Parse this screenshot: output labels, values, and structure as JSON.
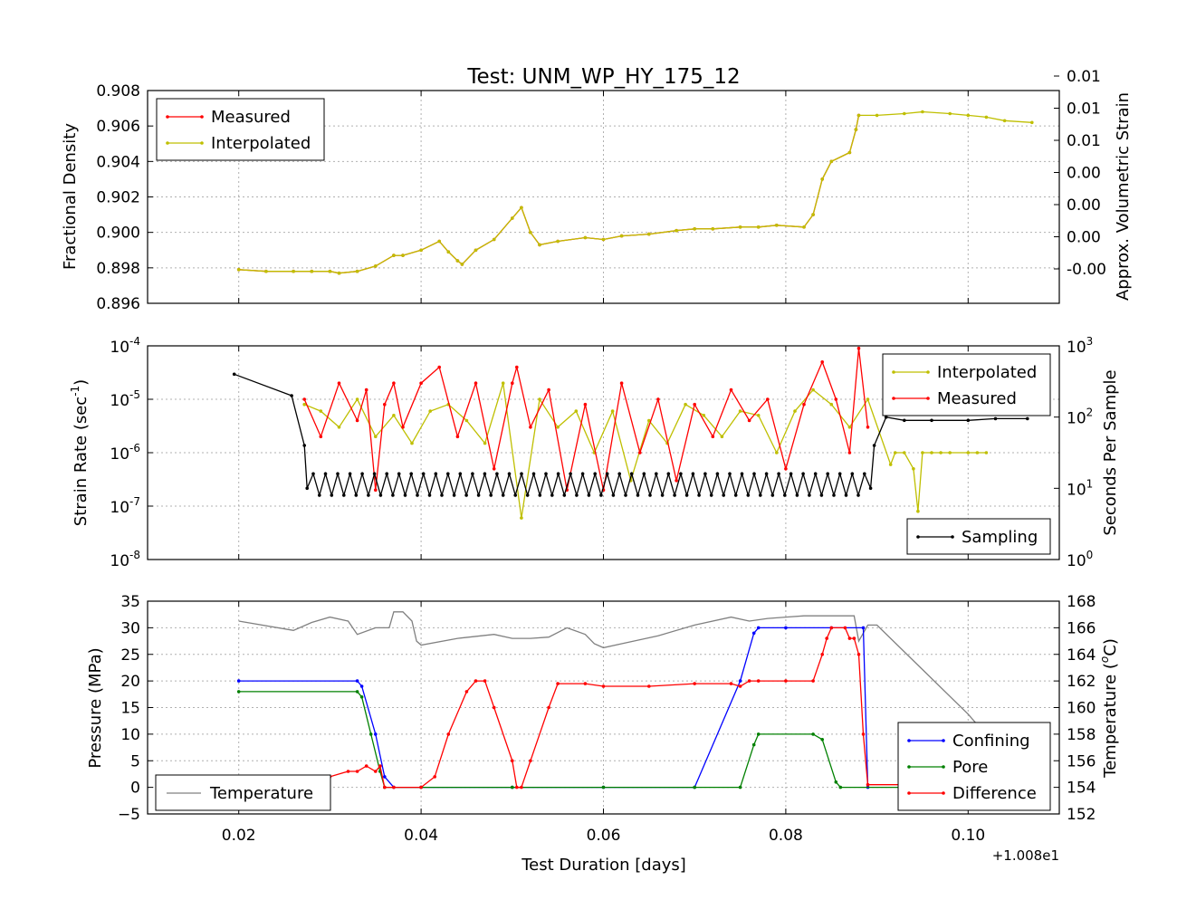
{
  "figure_title": "Test: UNM_WP_HY_175_12",
  "colors": {
    "measured": "#ff0000",
    "interpolated": "#bfbf00",
    "sampling": "#000000",
    "confining": "#0000ff",
    "pore": "#008000",
    "difference": "#ff0000",
    "temperature": "#808080"
  },
  "chart_data": [
    {
      "id": "density",
      "type": "line",
      "title": "Test: UNM_WP_HY_175_12",
      "ylabel": "Fractional Density",
      "y2label": "Approx. Volumetric Strain",
      "xlim": [
        0.01,
        0.11
      ],
      "ylim": [
        0.896,
        0.908
      ],
      "yticks": [
        "0.896",
        "0.898",
        "0.900",
        "0.902",
        "0.904",
        "0.906",
        "0.908"
      ],
      "y2ticks": [
        "-0.00",
        "0.00",
        "0.00",
        "0.00",
        "0.01",
        "0.01",
        "0.01"
      ],
      "grid": true,
      "legend": {
        "position": "upper-left",
        "entries": [
          "Measured",
          "Interpolated"
        ]
      },
      "series": [
        {
          "name": "Measured",
          "x": [
            0.02,
            0.023,
            0.026,
            0.028,
            0.03,
            0.031,
            0.033,
            0.035,
            0.037,
            0.038,
            0.04,
            0.042,
            0.043,
            0.044,
            0.0445,
            0.046,
            0.048,
            0.05,
            0.051,
            0.052,
            0.053,
            0.055,
            0.058,
            0.06,
            0.062,
            0.065,
            0.068,
            0.07,
            0.072,
            0.075,
            0.077,
            0.079,
            0.082,
            0.083,
            0.084,
            0.085,
            0.087,
            0.0877,
            0.088
          ],
          "y": [
            0.8979,
            0.8978,
            0.8978,
            0.8978,
            0.8978,
            0.8977,
            0.8978,
            0.8981,
            0.8987,
            0.8987,
            0.899,
            0.8995,
            0.8989,
            0.8984,
            0.8982,
            0.899,
            0.8996,
            0.9008,
            0.9014,
            0.9,
            0.8993,
            0.8995,
            0.8997,
            0.8996,
            0.8998,
            0.8999,
            0.9001,
            0.9002,
            0.9002,
            0.9003,
            0.9003,
            0.9004,
            0.9003,
            0.901,
            0.903,
            0.904,
            0.9045,
            0.9058,
            0.9066
          ]
        },
        {
          "name": "Interpolated",
          "x": [
            0.02,
            0.023,
            0.026,
            0.028,
            0.03,
            0.031,
            0.033,
            0.035,
            0.037,
            0.038,
            0.04,
            0.042,
            0.043,
            0.044,
            0.0445,
            0.046,
            0.048,
            0.05,
            0.051,
            0.052,
            0.053,
            0.055,
            0.058,
            0.06,
            0.062,
            0.065,
            0.068,
            0.07,
            0.072,
            0.075,
            0.077,
            0.079,
            0.082,
            0.083,
            0.084,
            0.085,
            0.087,
            0.0877,
            0.088,
            0.09,
            0.093,
            0.095,
            0.098,
            0.1,
            0.102,
            0.104,
            0.107
          ],
          "y": [
            0.8979,
            0.8978,
            0.8978,
            0.8978,
            0.8978,
            0.8977,
            0.8978,
            0.8981,
            0.8987,
            0.8987,
            0.899,
            0.8995,
            0.8989,
            0.8984,
            0.8982,
            0.899,
            0.8996,
            0.9008,
            0.9014,
            0.9,
            0.8993,
            0.8995,
            0.8997,
            0.8996,
            0.8998,
            0.8999,
            0.9001,
            0.9002,
            0.9002,
            0.9003,
            0.9003,
            0.9004,
            0.9003,
            0.901,
            0.903,
            0.904,
            0.9045,
            0.9058,
            0.9066,
            0.9066,
            0.9067,
            0.9068,
            0.9067,
            0.9066,
            0.9065,
            0.9063,
            0.9062
          ]
        }
      ]
    },
    {
      "id": "strainrate",
      "type": "line",
      "ylabel": "Strain Rate (sec",
      "ylabel_sup": "-1",
      "ylabel_tail": ")",
      "y2label": "Seconds Per Sample",
      "xlim": [
        0.01,
        0.11
      ],
      "ylog_range": [
        -8,
        -4
      ],
      "y2log_range": [
        0,
        3
      ],
      "yticks": [
        {
          "base": "10",
          "exp": "-8"
        },
        {
          "base": "10",
          "exp": "-7"
        },
        {
          "base": "10",
          "exp": "-6"
        },
        {
          "base": "10",
          "exp": "-5"
        },
        {
          "base": "10",
          "exp": "-4"
        }
      ],
      "y2ticks": [
        {
          "base": "10",
          "exp": "0"
        },
        {
          "base": "10",
          "exp": "1"
        },
        {
          "base": "10",
          "exp": "2"
        },
        {
          "base": "10",
          "exp": "3"
        }
      ],
      "grid": true,
      "legend_top": {
        "position": "upper-right",
        "entries": [
          "Interpolated",
          "Measured"
        ]
      },
      "legend_bottom": {
        "position": "lower-right",
        "entries": [
          "Sampling"
        ]
      },
      "series": [
        {
          "name": "Interpolated",
          "x": [
            0.0272,
            0.029,
            0.031,
            0.033,
            0.035,
            0.037,
            0.039,
            0.041,
            0.043,
            0.045,
            0.047,
            0.049,
            0.051,
            0.053,
            0.055,
            0.057,
            0.059,
            0.061,
            0.063,
            0.065,
            0.067,
            0.069,
            0.071,
            0.073,
            0.075,
            0.077,
            0.079,
            0.081,
            0.083,
            0.085,
            0.087,
            0.089,
            0.0915,
            0.092,
            0.093,
            0.094,
            0.0945,
            0.095,
            0.096,
            0.097,
            0.098,
            0.1,
            0.101,
            0.102
          ],
          "y": [
            8e-06,
            6e-06,
            3e-06,
            1e-05,
            2e-06,
            5e-06,
            1.5e-06,
            6e-06,
            8e-06,
            4e-06,
            1.5e-06,
            2e-05,
            6e-08,
            1e-05,
            3e-06,
            6e-06,
            1e-06,
            6e-06,
            3e-07,
            4e-06,
            1.5e-06,
            8e-06,
            5e-06,
            2e-06,
            6e-06,
            5e-06,
            1e-06,
            6e-06,
            1.5e-05,
            8e-06,
            3e-06,
            1e-05,
            6e-07,
            1e-06,
            1e-06,
            5e-07,
            8e-08,
            1e-06,
            1e-06,
            1e-06,
            1e-06,
            1e-06,
            1e-06,
            1e-06
          ]
        },
        {
          "name": "Measured",
          "x": [
            0.0272,
            0.029,
            0.031,
            0.033,
            0.034,
            0.035,
            0.036,
            0.037,
            0.038,
            0.04,
            0.042,
            0.044,
            0.046,
            0.048,
            0.05,
            0.0505,
            0.052,
            0.054,
            0.056,
            0.058,
            0.06,
            0.062,
            0.064,
            0.066,
            0.068,
            0.07,
            0.072,
            0.074,
            0.076,
            0.078,
            0.08,
            0.082,
            0.084,
            0.0855,
            0.087,
            0.088,
            0.089
          ],
          "y": [
            1e-05,
            2e-06,
            2e-05,
            4e-06,
            1.5e-05,
            2e-07,
            8e-06,
            2e-05,
            3e-06,
            2e-05,
            4e-05,
            2e-06,
            2e-05,
            5e-07,
            2e-05,
            4e-05,
            3e-06,
            1.5e-05,
            2e-07,
            8e-06,
            2e-07,
            2e-05,
            1e-06,
            1e-05,
            3e-07,
            8e-06,
            2e-06,
            1.5e-05,
            4e-06,
            1e-05,
            5e-07,
            8e-06,
            5e-05,
            1e-05,
            1e-06,
            9e-05,
            3e-06
          ]
        },
        {
          "name": "Sampling",
          "axis": "right",
          "x": [
            0.0195,
            0.0258,
            0.0272,
            0.0275,
            0.0893,
            0.0897,
            0.091,
            0.093,
            0.096,
            0.1,
            0.103,
            0.1065
          ],
          "y": [
            400,
            200,
            40,
            10,
            10,
            40,
            100,
            90,
            90,
            90,
            95,
            95
          ],
          "oscillation": {
            "x_range": [
              0.0275,
              0.0893
            ],
            "low": 8,
            "high": 16
          }
        }
      ]
    },
    {
      "id": "pressure",
      "type": "line",
      "xlabel": "Test Duration [days]",
      "x_offset_label": "+1.008e1",
      "ylabel": "Pressure (MPa)",
      "y2label": "Temperature (",
      "y2label_sup": "o",
      "y2label_tail": "C)",
      "xlim": [
        0.01,
        0.11
      ],
      "xticks": [
        "0.02",
        "0.04",
        "0.06",
        "0.08",
        "0.10"
      ],
      "ylim": [
        -5,
        35
      ],
      "yticks": [
        "−5",
        "0",
        "5",
        "10",
        "15",
        "20",
        "25",
        "30",
        "35"
      ],
      "y2lim": [
        152,
        168
      ],
      "y2ticks": [
        "152",
        "154",
        "156",
        "158",
        "160",
        "162",
        "164",
        "166",
        "168"
      ],
      "grid": true,
      "legend_left": {
        "position": "lower-left",
        "entries": [
          "Temperature"
        ]
      },
      "legend_right": {
        "position": "lower-right",
        "entries": [
          "Confining",
          "Pore",
          "Difference"
        ]
      },
      "series": [
        {
          "name": "Confining",
          "x": [
            0.02,
            0.033,
            0.0335,
            0.035,
            0.036,
            0.037,
            0.04,
            0.05,
            0.06,
            0.07,
            0.075,
            0.0765,
            0.077,
            0.08,
            0.085,
            0.0885,
            0.089
          ],
          "y": [
            20,
            20,
            19,
            10,
            2,
            0,
            0,
            0,
            0,
            0,
            20,
            29,
            30,
            30,
            30,
            30,
            0
          ]
        },
        {
          "name": "Pore",
          "x": [
            0.02,
            0.033,
            0.0335,
            0.0345,
            0.0355,
            0.036,
            0.04,
            0.05,
            0.06,
            0.07,
            0.075,
            0.0765,
            0.077,
            0.083,
            0.084,
            0.0855,
            0.086,
            0.1,
            0.104
          ],
          "y": [
            18,
            18,
            17,
            10,
            3,
            0,
            0,
            0,
            0,
            0,
            0,
            8,
            10,
            10,
            9,
            1,
            0,
            0,
            0
          ]
        },
        {
          "name": "Difference",
          "x": [
            0.02,
            0.03,
            0.032,
            0.033,
            0.034,
            0.035,
            0.0355,
            0.036,
            0.037,
            0.04,
            0.0415,
            0.043,
            0.045,
            0.046,
            0.047,
            0.048,
            0.05,
            0.0505,
            0.051,
            0.052,
            0.054,
            0.055,
            0.058,
            0.06,
            0.065,
            0.07,
            0.074,
            0.075,
            0.076,
            0.077,
            0.08,
            0.083,
            0.084,
            0.0845,
            0.085,
            0.0865,
            0.087,
            0.0875,
            0.088,
            0.0885,
            0.089,
            0.1,
            0.104
          ],
          "y": [
            2,
            2,
            3,
            3,
            4,
            3,
            4,
            0,
            0,
            0,
            2,
            10,
            18,
            20,
            20,
            15,
            5,
            0,
            0,
            5,
            15,
            19.5,
            19.5,
            19,
            19,
            19.5,
            19.5,
            19,
            20,
            20,
            20,
            20,
            25,
            28,
            30,
            30,
            28,
            28,
            25,
            10,
            0.5,
            0.5,
            0.3
          ]
        },
        {
          "name": "Temperature",
          "axis": "right",
          "x": [
            0.02,
            0.026,
            0.028,
            0.03,
            0.032,
            0.033,
            0.035,
            0.0365,
            0.037,
            0.038,
            0.039,
            0.0395,
            0.04,
            0.044,
            0.048,
            0.05,
            0.052,
            0.054,
            0.056,
            0.058,
            0.059,
            0.06,
            0.062,
            0.066,
            0.07,
            0.074,
            0.076,
            0.078,
            0.08,
            0.082,
            0.0875,
            0.088,
            0.089,
            0.09,
            0.1,
            0.107
          ],
          "y": [
            166.5,
            165.8,
            166.4,
            166.8,
            166.5,
            165.5,
            166,
            166,
            167.2,
            167.2,
            166.5,
            165,
            164.7,
            165.2,
            165.5,
            165.2,
            165.2,
            165.3,
            166,
            165.5,
            164.8,
            164.5,
            164.8,
            165.4,
            166.2,
            166.8,
            166.5,
            166.7,
            166.8,
            166.9,
            166.9,
            165,
            166.2,
            166.2,
            159.5,
            154.0
          ]
        }
      ]
    }
  ]
}
